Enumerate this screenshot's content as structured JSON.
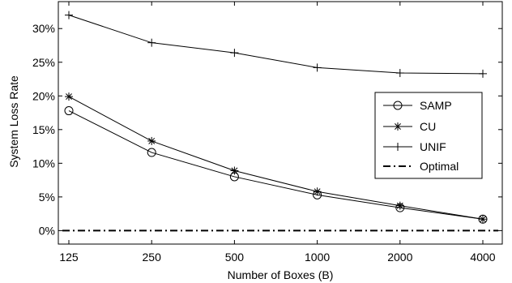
{
  "chart_data": {
    "type": "line",
    "title": "",
    "xlabel": "Number of Boxes (B)",
    "ylabel": "System Loss Rate",
    "categories": [
      "125",
      "250",
      "500",
      "1000",
      "2000",
      "4000"
    ],
    "x_scale": "log2",
    "y_ticks": [
      "0%",
      "5%",
      "10%",
      "15%",
      "20%",
      "25%",
      "30%"
    ],
    "y_tick_values": [
      0,
      5,
      10,
      15,
      20,
      25,
      30
    ],
    "ylim": [
      -2,
      34
    ],
    "legend_position": "right",
    "grid": false,
    "series": [
      {
        "name": "SAMP",
        "marker": "circle",
        "line": "solid",
        "color": "#000000",
        "values": [
          17.8,
          11.6,
          8.0,
          5.3,
          3.4,
          1.7
        ]
      },
      {
        "name": "CU",
        "marker": "star",
        "line": "solid",
        "color": "#000000",
        "values": [
          19.9,
          13.3,
          8.9,
          5.8,
          3.7,
          1.7
        ]
      },
      {
        "name": "UNIF",
        "marker": "plus",
        "line": "solid",
        "color": "#000000",
        "values": [
          32.0,
          27.9,
          26.4,
          24.2,
          23.4,
          23.3
        ]
      },
      {
        "name": "Optimal",
        "marker": "none",
        "line": "dashdot",
        "color": "#000000",
        "values": [
          0,
          0,
          0,
          0,
          0,
          0
        ]
      }
    ]
  }
}
